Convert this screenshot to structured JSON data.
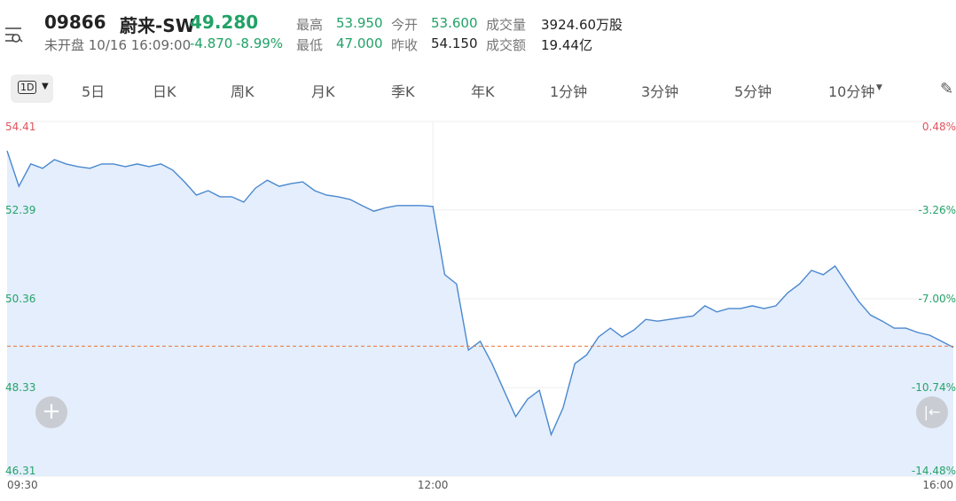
{
  "header": {
    "code": "09866",
    "name": "蔚来-SW",
    "price": "49.280",
    "status": "未开盘 10/16 16:09:00",
    "change": "-4.870",
    "change_pct": "-8.99%",
    "stats": [
      [
        "最高",
        "53.950"
      ],
      [
        "今开",
        "53.600"
      ],
      [
        "成交量",
        "3924.60万股"
      ],
      [
        "最低",
        "47.000"
      ],
      [
        "昨收",
        "54.150"
      ],
      [
        "成交额",
        "19.44亿"
      ]
    ]
  },
  "tabs": [
    "1D",
    "5日",
    "日K",
    "周K",
    "月K",
    "季K",
    "年K",
    "1分钟",
    "3分钟",
    "5分钟",
    "10分钟"
  ],
  "chart_data": {
    "type": "line",
    "categories": [
      "09:30",
      null,
      null,
      null,
      null,
      null,
      null,
      null,
      null,
      null,
      null,
      null,
      null,
      null,
      null,
      null,
      null,
      null,
      null,
      null,
      null,
      null,
      null,
      null,
      null,
      null,
      null,
      null,
      null,
      null,
      null,
      null,
      null,
      null,
      null,
      null,
      "12:00",
      null,
      null,
      null,
      null,
      null,
      null,
      null,
      null,
      null,
      null,
      null,
      null,
      null,
      null,
      null,
      null,
      null,
      null,
      null,
      null,
      null,
      null,
      null,
      null,
      null,
      null,
      null,
      null,
      null,
      null,
      null,
      null,
      null,
      null,
      null,
      null,
      null,
      null,
      null,
      null,
      null,
      null,
      null,
      "16:00"
    ],
    "values": [
      53.74,
      52.93,
      53.44,
      53.34,
      53.54,
      53.44,
      53.38,
      53.34,
      53.44,
      53.44,
      53.38,
      53.44,
      53.38,
      53.44,
      53.3,
      53.03,
      52.73,
      52.83,
      52.69,
      52.69,
      52.57,
      52.89,
      53.07,
      52.93,
      52.99,
      53.03,
      52.83,
      52.73,
      52.69,
      52.63,
      52.49,
      52.36,
      52.44,
      52.49,
      52.49,
      52.49,
      52.47,
      50.91,
      50.7,
      49.19,
      49.39,
      48.88,
      48.27,
      47.67,
      48.07,
      48.27,
      47.26,
      47.87,
      48.88,
      49.08,
      49.49,
      49.69,
      49.49,
      49.65,
      49.89,
      49.85,
      49.89,
      49.93,
      49.97,
      50.2,
      50.06,
      50.14,
      50.14,
      50.2,
      50.14,
      50.2,
      50.5,
      50.7,
      51.01,
      50.91,
      51.11,
      50.7,
      50.3,
      49.99,
      49.85,
      49.69,
      49.69,
      49.59,
      49.53,
      49.39,
      49.25
    ],
    "color": "#4a88cf",
    "area_color": "#e4eefc",
    "ylim": [
      46.31,
      54.41
    ],
    "yticks": [
      54.41,
      52.39,
      50.36,
      48.33,
      46.31
    ],
    "y2lim": [
      -14.48,
      0.48
    ],
    "y2ticks": [
      {
        "value": 0.48,
        "label": "0.48%"
      },
      {
        "value": -3.26,
        "label": "-3.26%"
      },
      {
        "value": -7.0,
        "label": "-7.00%"
      },
      {
        "value": -10.74,
        "label": "-10.74%"
      },
      {
        "value": -14.48,
        "label": "-14.48%"
      }
    ],
    "current_price": 49.28,
    "current_color": "#e8743a",
    "up_color": "#e0545c",
    "down_color": "#26a36a",
    "grid": true
  }
}
